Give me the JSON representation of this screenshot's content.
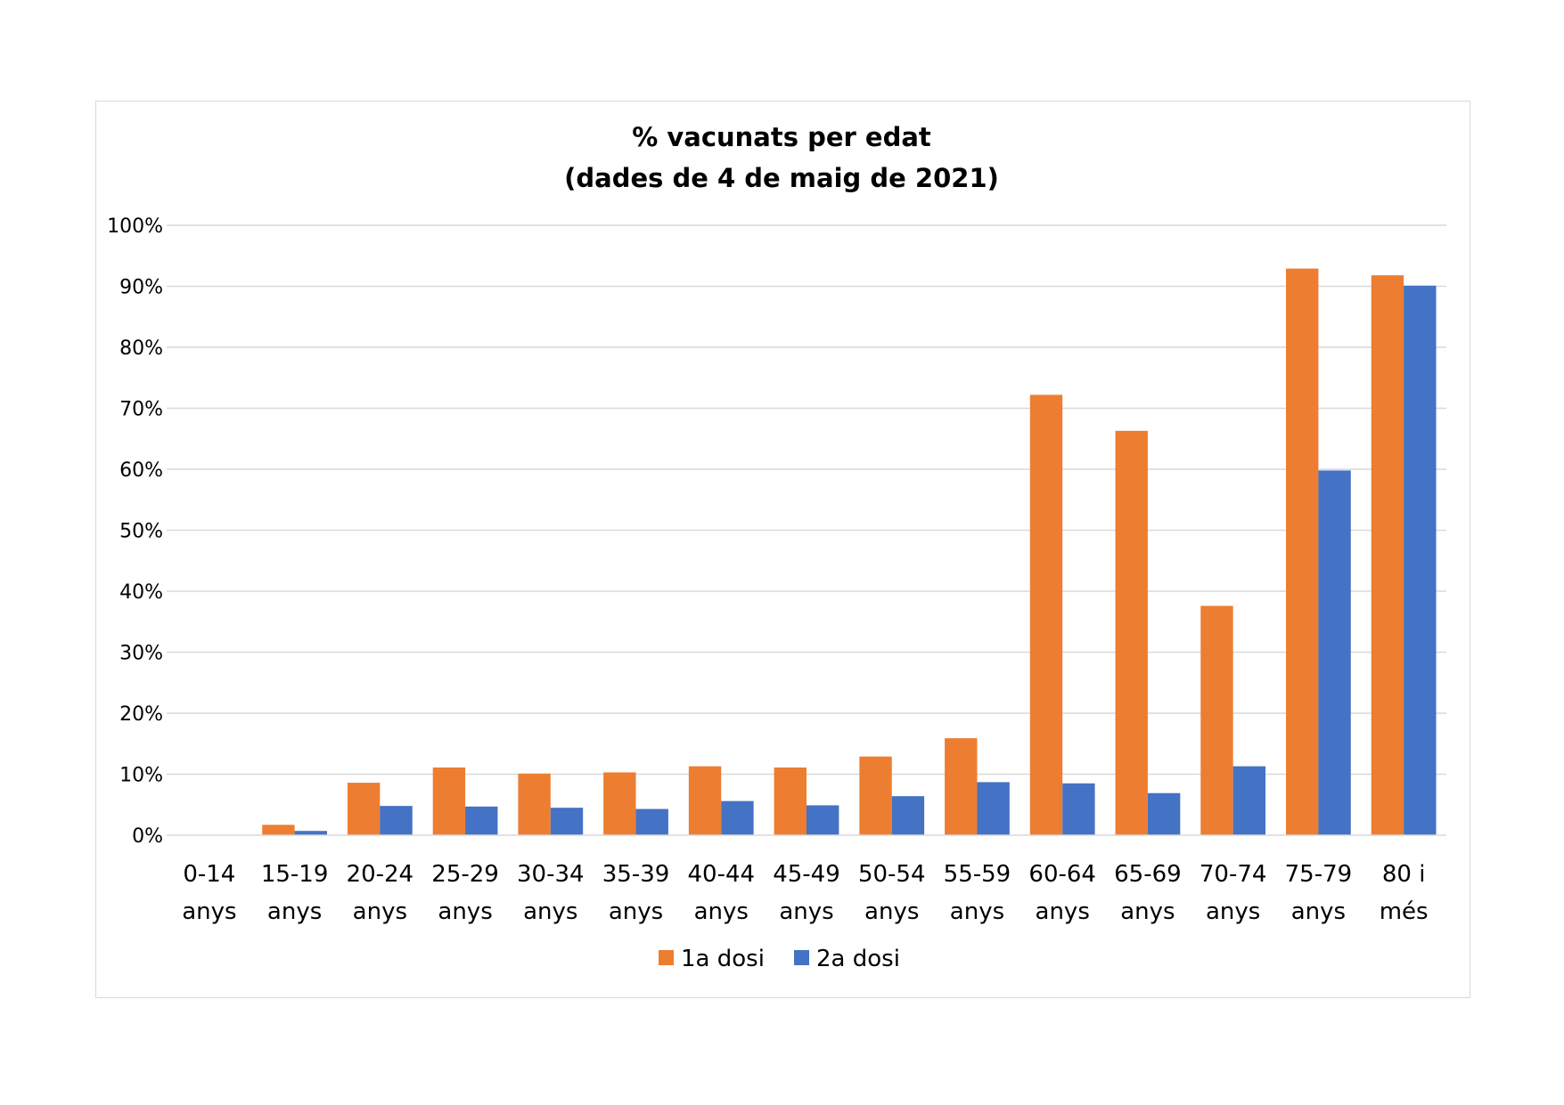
{
  "chart_data": {
    "type": "bar",
    "title_lines": [
      "% vacunats per edat",
      "(dades de 4 de maig de 2021)"
    ],
    "categories": [
      [
        "0-14",
        "anys"
      ],
      [
        "15-19",
        "anys"
      ],
      [
        "20-24",
        "anys"
      ],
      [
        "25-29",
        "anys"
      ],
      [
        "30-34",
        "anys"
      ],
      [
        "35-39",
        "anys"
      ],
      [
        "40-44",
        "anys"
      ],
      [
        "45-49",
        "anys"
      ],
      [
        "50-54",
        "anys"
      ],
      [
        "55-59",
        "anys"
      ],
      [
        "60-64",
        "anys"
      ],
      [
        "65-69",
        "anys"
      ],
      [
        "70-74",
        "anys"
      ],
      [
        "75-79",
        "anys"
      ],
      [
        "80 i",
        "més"
      ]
    ],
    "series": [
      {
        "name": "1a dosi",
        "color": "#ED7D31",
        "values": [
          0,
          1.7,
          8.6,
          11.1,
          10.1,
          10.3,
          11.3,
          11.1,
          12.9,
          15.9,
          72.2,
          66.3,
          37.6,
          92.9,
          91.8
        ]
      },
      {
        "name": "2a dosi",
        "color": "#4472C4",
        "values": [
          0,
          0.7,
          4.8,
          4.7,
          4.5,
          4.3,
          5.6,
          4.9,
          6.4,
          8.7,
          8.5,
          6.9,
          11.3,
          59.8,
          90.1
        ]
      }
    ],
    "ylim": [
      0,
      100
    ],
    "yticks": [
      "0%",
      "10%",
      "20%",
      "30%",
      "40%",
      "50%",
      "60%",
      "70%",
      "80%",
      "90%",
      "100%"
    ],
    "grid": true,
    "legend": "bottom-center",
    "xlabel": "",
    "ylabel": ""
  }
}
